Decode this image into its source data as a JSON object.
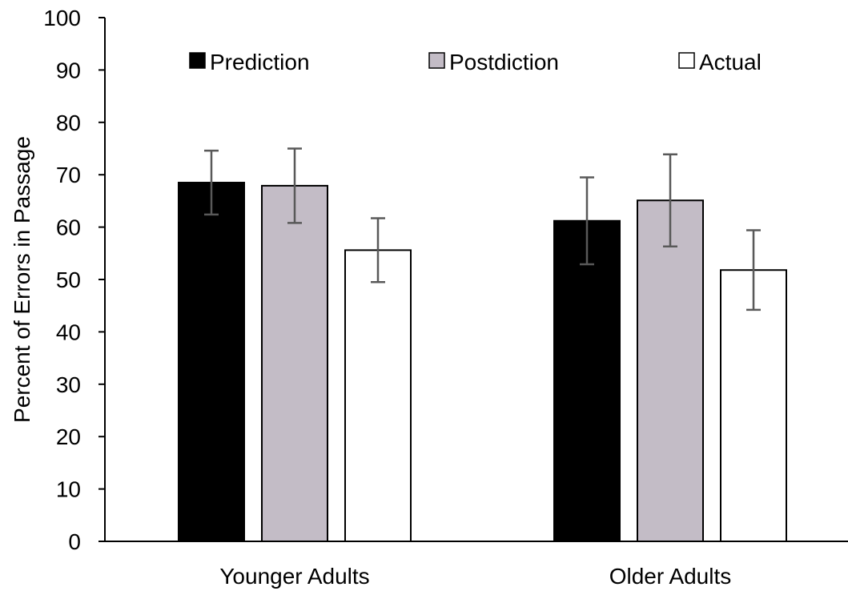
{
  "chart_data": {
    "type": "bar",
    "title": "",
    "xlabel": "",
    "ylabel": "Percent of Errors in Passage",
    "ylim": [
      0,
      100
    ],
    "yticks": [
      "0",
      "10",
      "20",
      "30",
      "40",
      "50",
      "60",
      "70",
      "80",
      "90",
      "100"
    ],
    "categories": [
      "Younger Adults",
      "Older Adults"
    ],
    "legend_position": "top",
    "grid": false,
    "series": [
      {
        "name": "Prediction",
        "color": "#000000",
        "values": [
          68.5,
          61.2
        ],
        "error": [
          6.1,
          8.3
        ]
      },
      {
        "name": "Postdiction",
        "color": "#c3bcc6",
        "values": [
          67.9,
          65.1
        ],
        "error": [
          7.1,
          8.8
        ]
      },
      {
        "name": "Actual",
        "color": "#ffffff",
        "values": [
          55.6,
          51.8
        ],
        "error": [
          6.1,
          7.6
        ]
      }
    ]
  }
}
